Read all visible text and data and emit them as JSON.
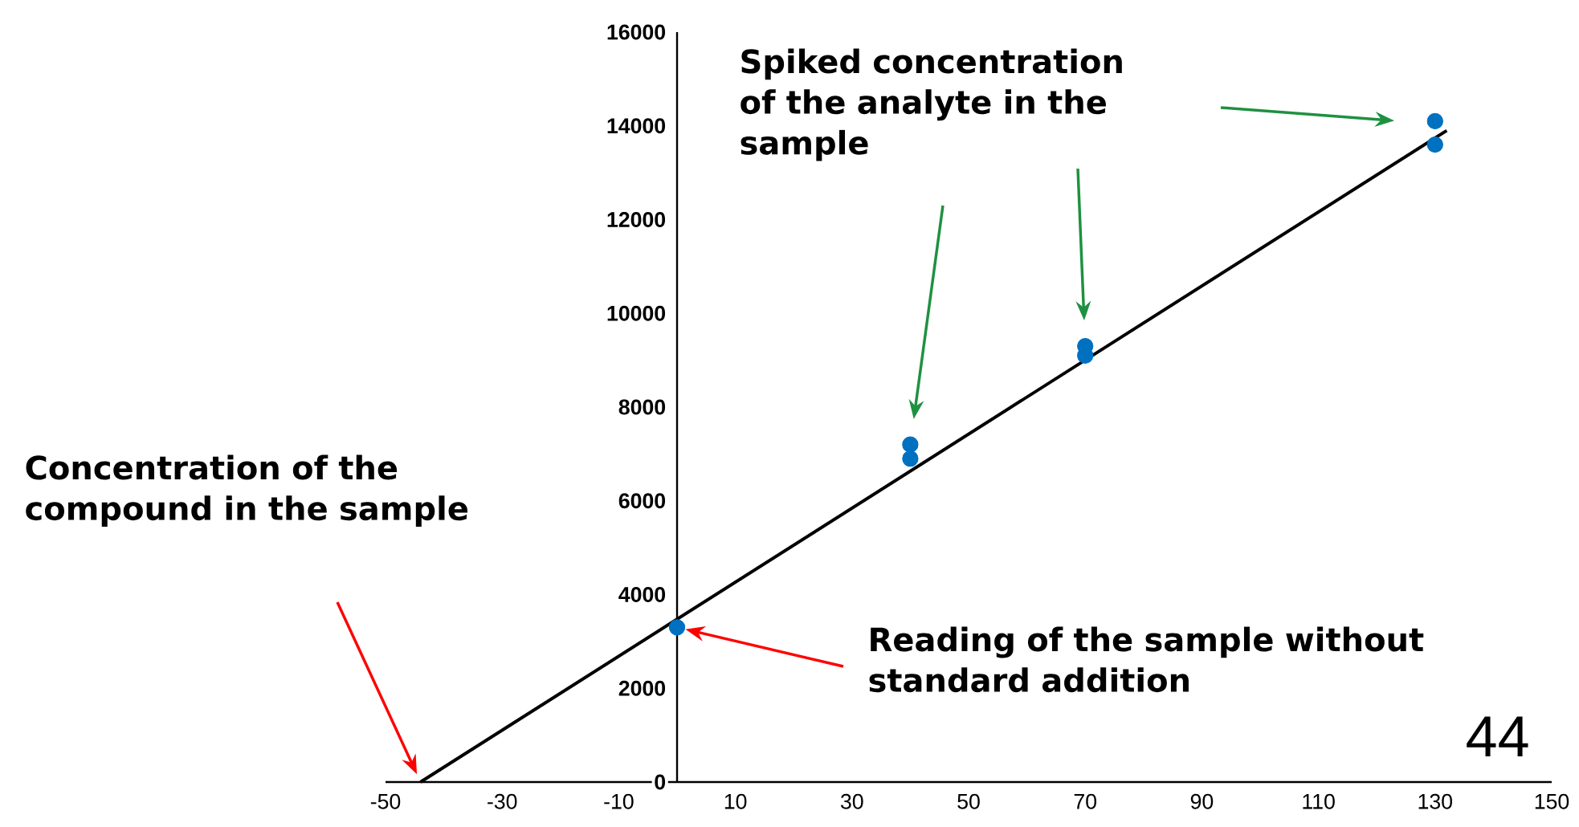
{
  "chart_data": {
    "type": "scatter",
    "xlim": [
      -50,
      150
    ],
    "ylim": [
      0,
      16000
    ],
    "xticks": [
      -50,
      -30,
      -10,
      10,
      30,
      50,
      70,
      90,
      110,
      130,
      150
    ],
    "yticks": [
      0,
      2000,
      4000,
      6000,
      8000,
      10000,
      12000,
      14000,
      16000
    ],
    "series": [
      {
        "type": "scatter",
        "color": "#0070c0",
        "marker": "circle",
        "x": [
          0,
          40,
          40,
          70,
          70,
          130,
          130
        ],
        "values": [
          3300,
          6900,
          7200,
          9100,
          9300,
          13600,
          14100
        ]
      },
      {
        "type": "line",
        "color": "#000000",
        "x": [
          -44,
          132
        ],
        "values": [
          0,
          13900
        ]
      }
    ],
    "annotations": [
      "Concentration of the compound in the sample",
      "Spiked concentration of the analyte in the sample",
      "Reading of the sample without standard addition",
      "44"
    ]
  }
}
